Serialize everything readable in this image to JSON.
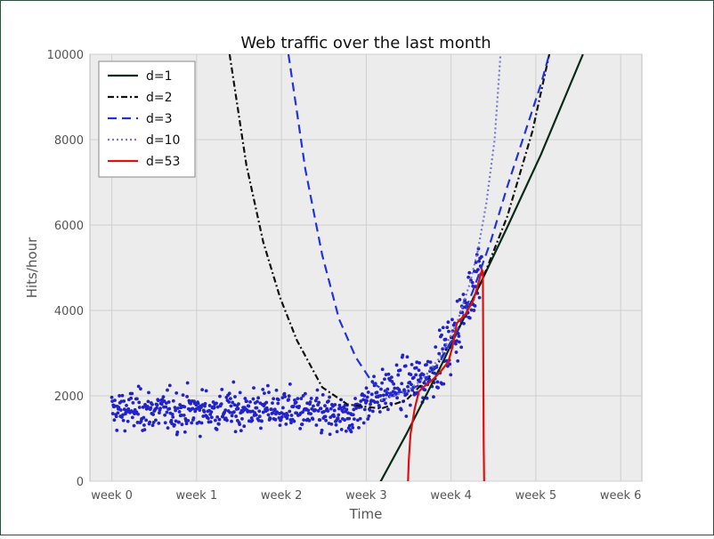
{
  "chart_data": {
    "type": "line",
    "title": "Web traffic over the last month",
    "xlabel": "Time",
    "ylabel": "Hits/hour",
    "xlim": [
      -260,
      6300
    ],
    "ylim": [
      0,
      10000
    ],
    "grid": true,
    "legend_position": "top-left",
    "x_ticks": [
      {
        "value": 0,
        "label": "week 0"
      },
      {
        "value": 1008,
        "label": "week 1"
      },
      {
        "value": 2016,
        "label": "week 2"
      },
      {
        "value": 3024,
        "label": "week 3"
      },
      {
        "value": 4032,
        "label": "week 4"
      },
      {
        "value": 5040,
        "label": "week 5"
      },
      {
        "value": 6048,
        "label": "week 6"
      }
    ],
    "y_ticks": [
      {
        "value": 0,
        "label": "0"
      },
      {
        "value": 2000,
        "label": "2000"
      },
      {
        "value": 4000,
        "label": "4000"
      },
      {
        "value": 6000,
        "label": "6000"
      },
      {
        "value": 8000,
        "label": "8000"
      },
      {
        "value": 10000,
        "label": "10000"
      }
    ],
    "scatter": {
      "color": "#2222cc",
      "x_start": 0,
      "x_end": 4400,
      "points_per_week": 168,
      "shape_x": [
        0,
        1008,
        2016,
        2800,
        3100,
        3400,
        3700,
        4000,
        4200,
        4400
      ],
      "shape_y": [
        1650,
        1650,
        1700,
        1450,
        2000,
        2200,
        2350,
        3100,
        4000,
        5300
      ],
      "noise": 400
    },
    "series": [
      {
        "name": "d=1",
        "color": "#0a2a18",
        "dash": "solid",
        "x": [
          3024,
          3100,
          3500,
          3900,
          4300,
          4700,
          5100,
          5600
        ],
        "y": [
          -900,
          -350,
          1100,
          2650,
          4300,
          5950,
          7650,
          10000
        ]
      },
      {
        "name": "d=2",
        "color": "#111111",
        "dash": "dashdot",
        "x": [
          1400,
          1600,
          1800,
          2000,
          2200,
          2500,
          2800,
          3000,
          3200,
          3500,
          3800,
          4100,
          4400,
          4700,
          5000,
          5200
        ],
        "y": [
          10000,
          7400,
          5600,
          4300,
          3300,
          2200,
          1800,
          1750,
          1700,
          1900,
          2500,
          3500,
          4700,
          6200,
          8200,
          10000
        ]
      },
      {
        "name": "d=3",
        "color": "#2233dd",
        "dash": "dashed",
        "x": [
          2100,
          2300,
          2500,
          2700,
          2900,
          3100,
          3300,
          3500,
          3700,
          3900,
          4100,
          4300,
          4500,
          4700,
          4900,
          5100,
          5200
        ],
        "y": [
          10000,
          7300,
          5300,
          3800,
          2900,
          2300,
          2050,
          2100,
          2300,
          2800,
          3500,
          4500,
          5600,
          6900,
          8100,
          9300,
          10000
        ]
      },
      {
        "name": "d=10",
        "color": "#7777cc",
        "dash": "dotted",
        "x": [
          3200,
          3500,
          3700,
          3900,
          4100,
          4250,
          4350,
          4450,
          4550,
          4620
        ],
        "y": [
          1900,
          2100,
          2400,
          2900,
          3700,
          4600,
          5400,
          6500,
          8000,
          10000
        ]
      },
      {
        "name": "d=53",
        "color": "#dd1111",
        "dash": "solid",
        "x": [
          3520,
          3530,
          3550,
          3600,
          3650,
          3700,
          3800,
          3900,
          4000,
          4050,
          4100,
          4200,
          4300,
          4380,
          4400,
          4410,
          4415,
          4420,
          4425
        ],
        "y": [
          0,
          500,
          1100,
          1700,
          2100,
          2200,
          2350,
          2550,
          2800,
          3150,
          3700,
          3900,
          4250,
          4800,
          4950,
          4900,
          3000,
          900,
          0
        ]
      }
    ]
  }
}
